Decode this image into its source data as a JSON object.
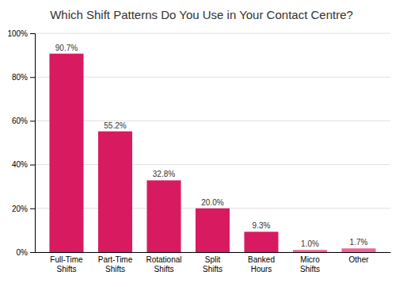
{
  "chart_data": {
    "type": "bar",
    "title": "Which Shift Patterns Do You Use in Your Contact Centre?",
    "categories": [
      "Full-Time\nShifts",
      "Part-Time\nShifts",
      "Rotational\nShifts",
      "Split\nShifts",
      "Banked\nHours",
      "Micro\nShifts",
      "Other"
    ],
    "values": [
      90.7,
      55.2,
      32.8,
      20.0,
      9.3,
      1.0,
      1.7
    ],
    "value_labels": [
      "90.7%",
      "55.2%",
      "32.8%",
      "20.0%",
      "9.3%",
      "1.0%",
      "1.7%"
    ],
    "data_labels": true,
    "colors": [
      "#D81B60",
      "#D81B60",
      "#D81B60",
      "#D81B60",
      "#D81B60",
      "#F06292",
      "#F06292"
    ],
    "ylim": [
      0,
      100
    ],
    "yticks": [
      {
        "value": 0,
        "label": "0%"
      },
      {
        "value": 20,
        "label": "20%"
      },
      {
        "value": 40,
        "label": "40%"
      },
      {
        "value": 60,
        "label": "60%"
      },
      {
        "value": 80,
        "label": "80%"
      },
      {
        "value": 100,
        "label": "100%"
      }
    ],
    "grid": true
  }
}
